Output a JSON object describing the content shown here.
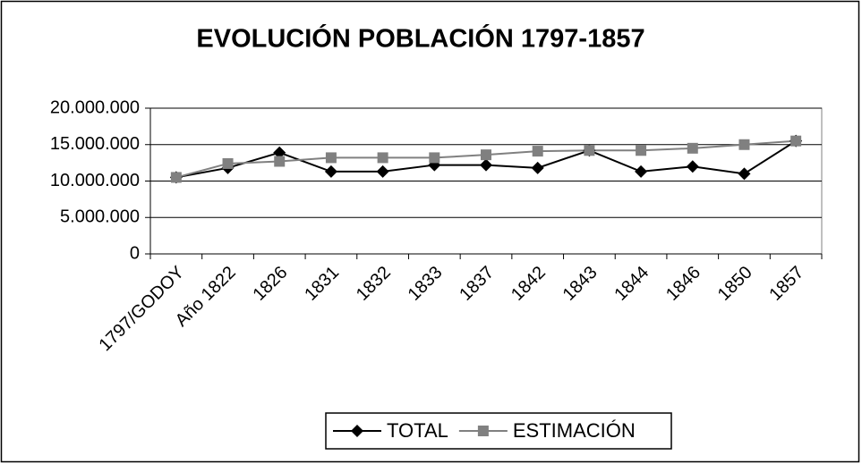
{
  "chart_data": {
    "type": "line",
    "title": "EVOLUCIÓN POBLACIÓN 1797-1857",
    "categories": [
      "1797/GODOY",
      "Año 1822",
      "1826",
      "1831",
      "1832",
      "1833",
      "1837",
      "1842",
      "1843",
      "1844",
      "1846",
      "1850",
      "1857"
    ],
    "series": [
      {
        "name": "TOTAL",
        "color": "#000000",
        "marker": "diamond",
        "values": [
          10500000,
          11800000,
          13900000,
          11300000,
          11300000,
          12200000,
          12200000,
          11800000,
          14200000,
          11300000,
          12000000,
          11000000,
          15500000
        ]
      },
      {
        "name": "ESTIMACIÓN",
        "color": "#808080",
        "marker": "square",
        "values": [
          10500000,
          12400000,
          12700000,
          13200000,
          13200000,
          13200000,
          13600000,
          14100000,
          14200000,
          14200000,
          14500000,
          15000000,
          15500000
        ]
      }
    ],
    "ylim": [
      0,
      20000000
    ],
    "yticks": [
      0,
      {
        "value": 5000000,
        "label": "5.000.000"
      },
      {
        "value": 10000000,
        "label": "10.000.000"
      },
      {
        "value": 15000000,
        "label": "15.000.000"
      },
      {
        "value": 20000000,
        "label": "20.000.000"
      }
    ],
    "grid": true,
    "legend": "bottom"
  }
}
